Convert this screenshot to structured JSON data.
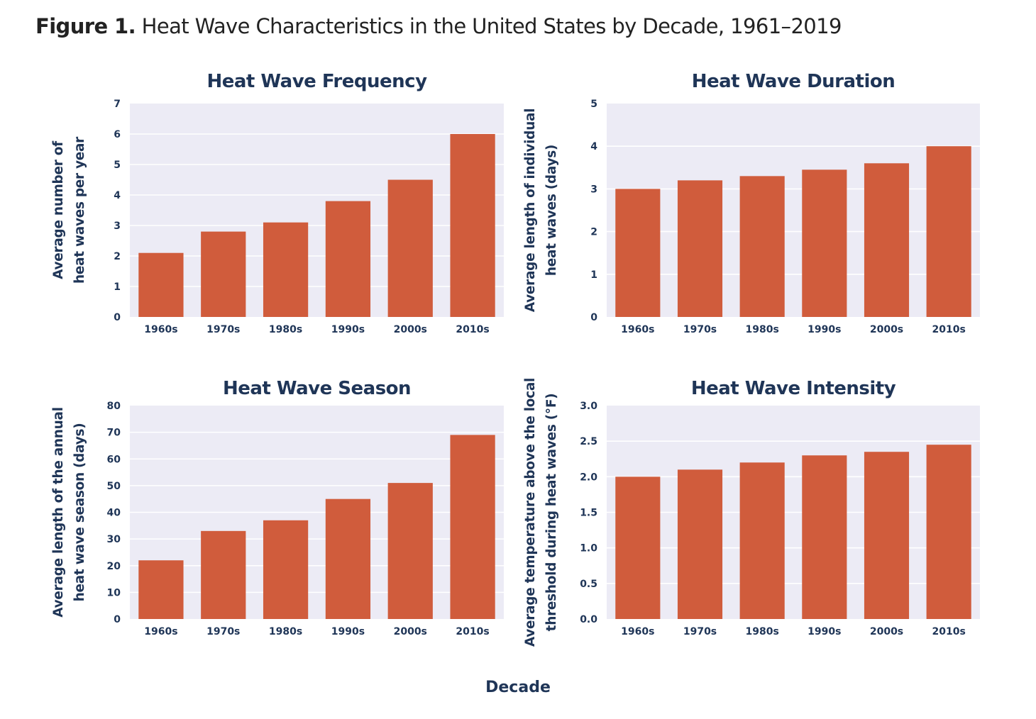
{
  "figure": {
    "label": "Figure 1.",
    "title": "Heat Wave Characteristics in the United States by Decade, 1961–2019",
    "shared_xlabel": "Decade"
  },
  "colors": {
    "bar": "#d05c3c",
    "plot_bg": "#ecebf5",
    "gridline": "#ffffff",
    "text": "#1f3557"
  },
  "chart_data": [
    {
      "type": "bar",
      "title": "Heat Wave Frequency",
      "xlabel": "",
      "ylabel": "Average number of heat waves per year",
      "ylabel_lines": [
        "Average number of",
        "heat waves per year"
      ],
      "categories": [
        "1960s",
        "1970s",
        "1980s",
        "1990s",
        "2000s",
        "2010s"
      ],
      "values": [
        2.1,
        2.8,
        3.1,
        3.8,
        4.5,
        6.0
      ],
      "ylim": [
        0,
        7
      ],
      "yticks": [
        0,
        1,
        2,
        3,
        4,
        5,
        6,
        7
      ],
      "ytick_labels": [
        "0",
        "1",
        "2",
        "3",
        "4",
        "5",
        "6",
        "7"
      ],
      "grid": true
    },
    {
      "type": "bar",
      "title": "Heat Wave Duration",
      "xlabel": "",
      "ylabel": "Average length of individual heat waves (days)",
      "ylabel_lines": [
        "Average length of individual",
        "heat waves (days)"
      ],
      "categories": [
        "1960s",
        "1970s",
        "1980s",
        "1990s",
        "2000s",
        "2010s"
      ],
      "values": [
        3.0,
        3.2,
        3.3,
        3.45,
        3.6,
        4.0
      ],
      "ylim": [
        0,
        5
      ],
      "yticks": [
        0,
        1,
        2,
        3,
        4,
        5
      ],
      "ytick_labels": [
        "0",
        "1",
        "2",
        "3",
        "4",
        "5"
      ],
      "grid": true
    },
    {
      "type": "bar",
      "title": "Heat Wave Season",
      "xlabel": "",
      "ylabel": "Average length of the annual heat wave season (days)",
      "ylabel_lines": [
        "Average length of the annual",
        "heat wave season (days)"
      ],
      "categories": [
        "1960s",
        "1970s",
        "1980s",
        "1990s",
        "2000s",
        "2010s"
      ],
      "values": [
        22,
        33,
        37,
        45,
        51,
        69
      ],
      "ylim": [
        0,
        80
      ],
      "yticks": [
        0,
        10,
        20,
        30,
        40,
        50,
        60,
        70,
        80
      ],
      "ytick_labels": [
        "0",
        "10",
        "20",
        "30",
        "40",
        "50",
        "60",
        "70",
        "80"
      ],
      "grid": true
    },
    {
      "type": "bar",
      "title": "Heat Wave Intensity",
      "xlabel": "",
      "ylabel": "Average temperature above the local threshold during heat waves (°F)",
      "ylabel_lines": [
        "Average temperature above the local",
        "threshold during heat waves (°F)"
      ],
      "categories": [
        "1960s",
        "1970s",
        "1980s",
        "1990s",
        "2000s",
        "2010s"
      ],
      "values": [
        2.0,
        2.1,
        2.2,
        2.3,
        2.35,
        2.45
      ],
      "ylim": [
        0,
        3
      ],
      "yticks": [
        0,
        0.5,
        1,
        1.5,
        2,
        2.5,
        3
      ],
      "ytick_labels": [
        "0.0",
        "0.5",
        "1.0",
        "1.5",
        "2.0",
        "2.5",
        "3.0"
      ],
      "grid": true
    }
  ]
}
